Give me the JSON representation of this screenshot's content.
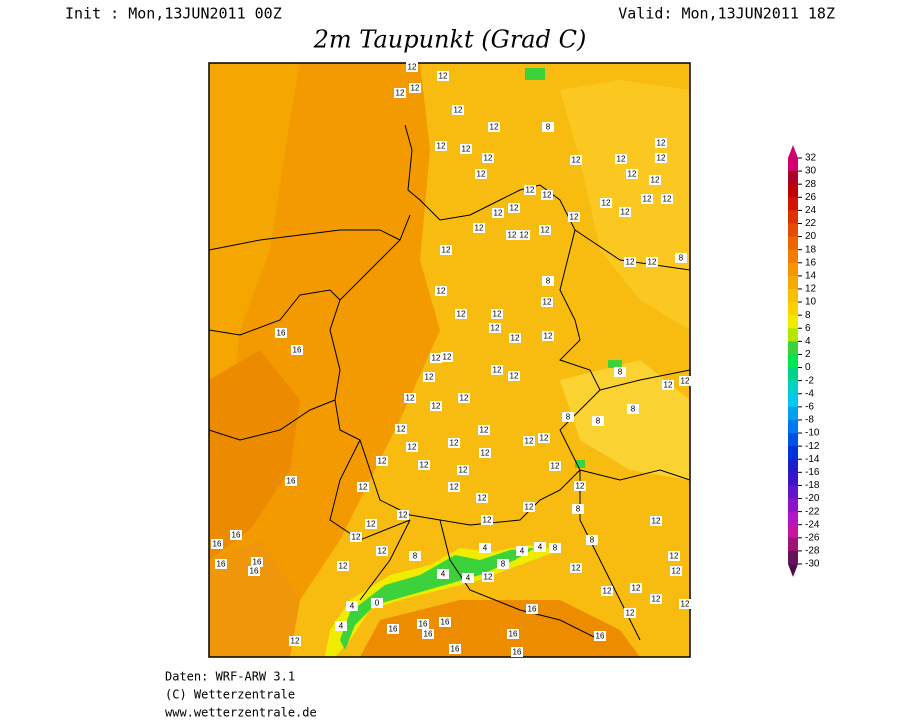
{
  "header": {
    "init": "Init : Mon,13JUN2011 00Z",
    "valid": "Valid: Mon,13JUN2011 18Z",
    "title": "2m Taupunkt (Grad C)"
  },
  "legend": {
    "ticks": [
      32,
      30,
      28,
      26,
      24,
      22,
      20,
      18,
      16,
      14,
      12,
      10,
      8,
      6,
      4,
      2,
      0,
      -2,
      -4,
      -6,
      -8,
      -10,
      -12,
      -14,
      -16,
      -18,
      -20,
      -22,
      -24,
      -26,
      -28,
      -30
    ],
    "colors": [
      "#d2006e",
      "#aa0028",
      "#be0000",
      "#d21400",
      "#dc3200",
      "#e64b00",
      "#eb6400",
      "#f07d00",
      "#f59600",
      "#f5aa00",
      "#f8c000",
      "#fad200",
      "#f0ec00",
      "#b4e600",
      "#3cd23c",
      "#00e650",
      "#00d28c",
      "#00d2c8",
      "#00c8f0",
      "#00a0f0",
      "#0078f0",
      "#0050e6",
      "#0032dc",
      "#1e1ec8",
      "#3c14c8",
      "#6414c8",
      "#8c14c8",
      "#b414c8",
      "#c814a0",
      "#a01478",
      "#64145a"
    ]
  },
  "station_values": [
    12,
    12,
    12,
    12,
    12,
    8,
    12,
    12,
    12,
    12,
    12,
    12,
    12,
    12,
    12,
    12,
    12,
    12,
    12,
    12,
    12,
    12,
    12,
    12,
    12,
    12,
    12,
    12,
    12,
    12,
    12,
    12,
    12,
    8,
    8,
    12,
    16,
    16,
    12,
    12,
    12,
    12,
    12,
    12,
    12,
    12,
    12,
    12,
    12,
    12,
    12,
    12,
    8,
    8,
    8,
    8,
    12,
    12,
    12,
    12,
    12,
    12,
    12,
    12,
    12,
    12,
    12,
    12,
    16,
    12,
    12,
    12,
    12,
    12,
    12,
    12,
    12,
    8,
    12,
    16,
    16,
    12,
    12,
    16,
    16,
    16,
    12,
    12,
    8,
    12,
    8,
    12,
    12,
    12,
    12,
    12,
    12,
    12,
    12,
    16,
    16,
    16,
    16,
    16,
    16,
    16,
    12,
    16,
    16,
    4,
    4,
    0,
    8,
    4,
    4,
    4,
    4,
    4,
    8
  ],
  "footer": {
    "model": "Daten: WRF-ARW 3.1",
    "copyright": "(C) Wetterzentrale",
    "url": "www.wetterzentrale.de"
  }
}
